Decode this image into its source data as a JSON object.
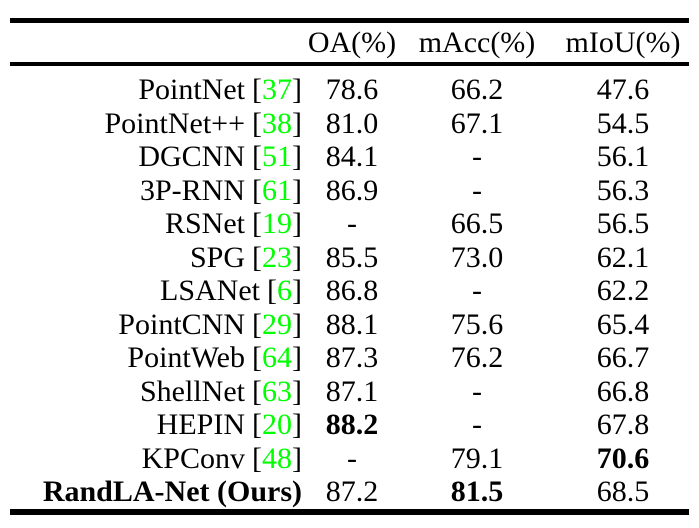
{
  "colors": {
    "citation_green": "#00ff00",
    "text": "#000000",
    "rule": "#000000",
    "background": "#ffffff"
  },
  "table": {
    "header": {
      "method": "",
      "oa": "OA(%)",
      "macc": "mAcc(%)",
      "miou": "mIoU(%)"
    },
    "citation_open_bracket": "[",
    "citation_close_bracket": "]",
    "missing_value": "-",
    "rows": [
      {
        "method": "PointNet",
        "cite": "37",
        "oa": "78.6",
        "macc": "66.2",
        "miou": "47.6",
        "bold": []
      },
      {
        "method": "PointNet++",
        "cite": "38",
        "oa": "81.0",
        "macc": "67.1",
        "miou": "54.5",
        "bold": []
      },
      {
        "method": "DGCNN",
        "cite": "51",
        "oa": "84.1",
        "macc": "-",
        "miou": "56.1",
        "bold": []
      },
      {
        "method": "3P-RNN",
        "cite": "61",
        "oa": "86.9",
        "macc": "-",
        "miou": "56.3",
        "bold": []
      },
      {
        "method": "RSNet",
        "cite": "19",
        "oa": "-",
        "macc": "66.5",
        "miou": "56.5",
        "bold": []
      },
      {
        "method": "SPG",
        "cite": "23",
        "oa": "85.5",
        "macc": "73.0",
        "miou": "62.1",
        "bold": []
      },
      {
        "method": "LSANet",
        "cite": "6",
        "oa": "86.8",
        "macc": "-",
        "miou": "62.2",
        "bold": []
      },
      {
        "method": "PointCNN",
        "cite": "29",
        "oa": "88.1",
        "macc": "75.6",
        "miou": "65.4",
        "bold": []
      },
      {
        "method": "PointWeb",
        "cite": "64",
        "oa": "87.3",
        "macc": "76.2",
        "miou": "66.7",
        "bold": []
      },
      {
        "method": "ShellNet",
        "cite": "63",
        "oa": "87.1",
        "macc": "-",
        "miou": "66.8",
        "bold": []
      },
      {
        "method": "HEPIN",
        "cite": "20",
        "oa": "88.2",
        "macc": "-",
        "miou": "67.8",
        "bold": [
          "oa"
        ]
      },
      {
        "method": "KPConv",
        "cite": "48",
        "oa": "-",
        "macc": "79.1",
        "miou": "70.6",
        "bold": [
          "miou"
        ]
      },
      {
        "method": "RandLA-Net (Ours)",
        "cite": null,
        "oa": "87.2",
        "macc": "81.5",
        "miou": "68.5",
        "bold": [
          "method",
          "macc"
        ]
      }
    ]
  }
}
